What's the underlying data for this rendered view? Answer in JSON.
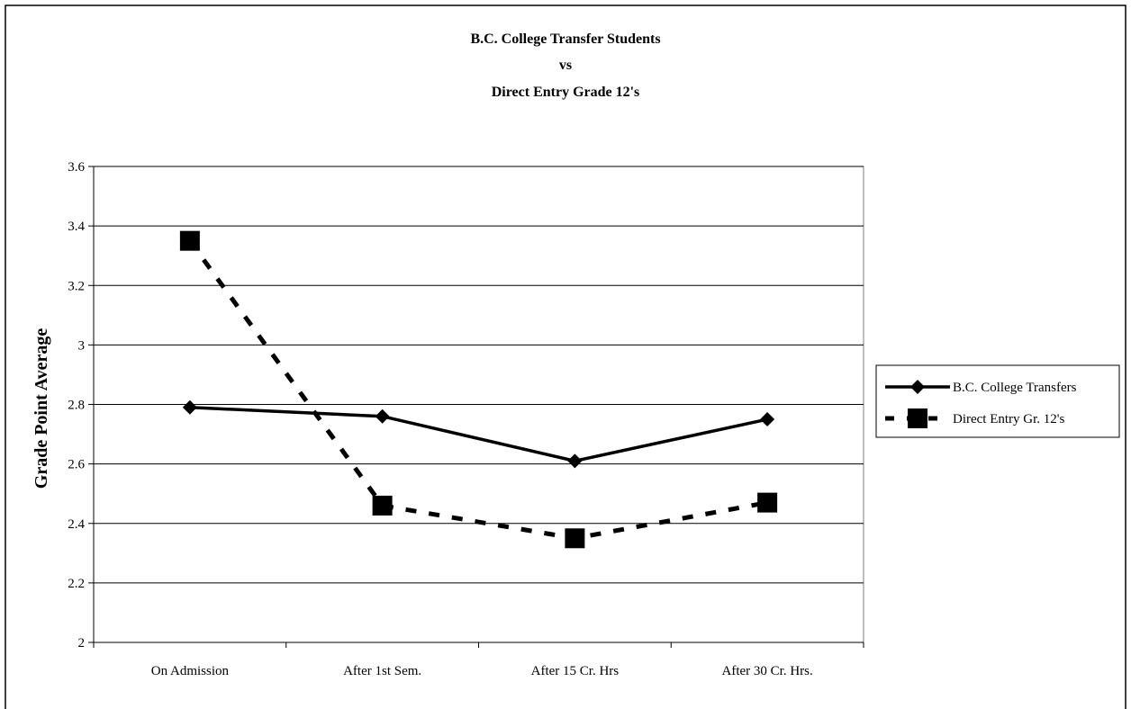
{
  "chart_data": {
    "type": "line",
    "title_lines": [
      "B.C. College Transfer Students",
      "vs",
      "Direct Entry Grade 12's"
    ],
    "xlabel": "",
    "ylabel": "Grade Point Average",
    "categories": [
      "On Admission",
      "After 1st Sem.",
      "After 15 Cr. Hrs",
      "After 30 Cr. Hrs."
    ],
    "ylim": [
      2,
      3.6
    ],
    "yticks": [
      2,
      2.2,
      2.4,
      2.6,
      2.8,
      3,
      3.2,
      3.4,
      3.6
    ],
    "ytick_labels": [
      "2",
      "2.2",
      "2.4",
      "2.6",
      "2.8",
      "3",
      "3.2",
      "3.4",
      "3.6"
    ],
    "grid": "horizontal",
    "legend_position": "right",
    "series": [
      {
        "name": "B.C. College Transfers",
        "values": [
          2.79,
          2.76,
          2.61,
          2.75
        ],
        "line": "solid",
        "marker": "diamond",
        "color": "#000000"
      },
      {
        "name": "Direct Entry Gr. 12's",
        "values": [
          3.35,
          2.46,
          2.35,
          2.47
        ],
        "line": "dashed",
        "marker": "square",
        "color": "#000000"
      }
    ]
  }
}
